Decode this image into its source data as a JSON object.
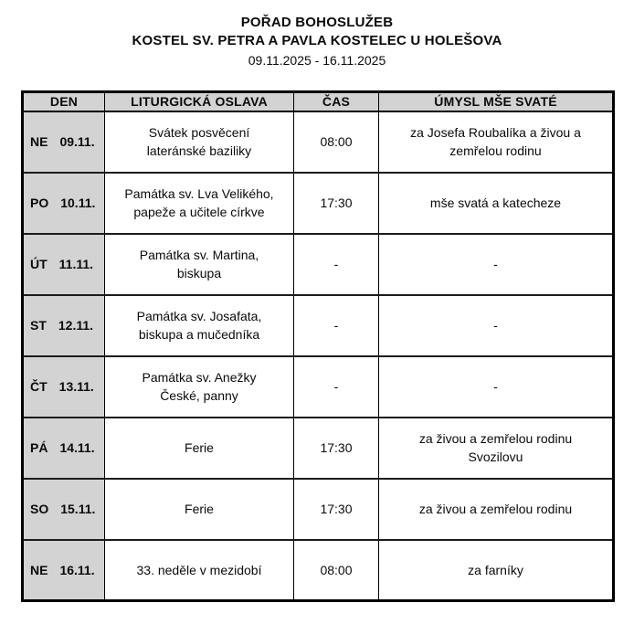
{
  "page": {
    "title": "POŘAD BOHOSLUŽEB",
    "subtitle": "KOSTEL SV. PETRA A PAVLA KOSTELEC U HOLEŠOVA",
    "date_range": "09.11.2025 - 16.11.2025"
  },
  "colors": {
    "header_bg": "#d3d3d3",
    "border": "#000000",
    "text": "#0a0a0a"
  },
  "schedule": {
    "columns": [
      "DEN",
      "LITURGICKÁ OSLAVA",
      "ČAS",
      "ÚMYSL MŠE SVATÉ"
    ],
    "rows": [
      {
        "day": "NE",
        "date": "09.11.",
        "liturgy": "Svátek posvěcení\nlateránské baziliky",
        "time": "08:00",
        "intention": "za Josefa Roubalíka a živou a\nzemřelou rodinu"
      },
      {
        "day": "PO",
        "date": "10.11.",
        "liturgy": "Památka sv. Lva Velikého,\npapeže a učitele církve",
        "time": "17:30",
        "intention": "mše svatá a katecheze"
      },
      {
        "day": "ÚT",
        "date": "11.11.",
        "liturgy": "Památka sv. Martina,\nbiskupa",
        "time": "-",
        "intention": "-"
      },
      {
        "day": "ST",
        "date": "12.11.",
        "liturgy": "Památka sv. Josafata,\nbiskupa a mučedníka",
        "time": "-",
        "intention": "-"
      },
      {
        "day": "ČT",
        "date": "13.11.",
        "liturgy": "Památka sv. Anežky\nČeské, panny",
        "time": "-",
        "intention": "-"
      },
      {
        "day": "PÁ",
        "date": "14.11.",
        "liturgy": "Ferie",
        "time": "17:30",
        "intention": "za živou a zemřelou rodinu\nSvozilovu"
      },
      {
        "day": "SO",
        "date": "15.11.",
        "liturgy": "Ferie",
        "time": "17:30",
        "intention": "za živou a zemřelou rodinu"
      },
      {
        "day": "NE",
        "date": "16.11.",
        "liturgy": "33. neděle v mezidobí",
        "time": "08:00",
        "intention": "za farníky"
      }
    ]
  }
}
